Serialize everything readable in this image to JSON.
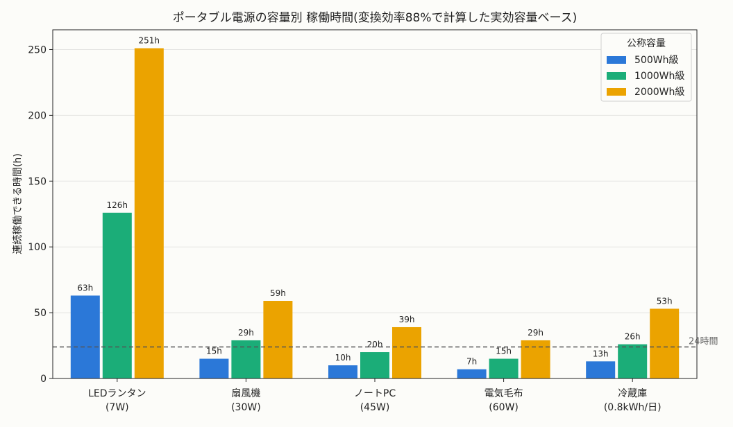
{
  "chart_data": {
    "type": "bar",
    "title": "ポータブル電源の容量別 稼働時間(変換効率88%で計算した実効容量ベース)",
    "xlabel": "",
    "ylabel": "連続稼働できる時間(h)",
    "categories": [
      "LEDランタン\n(7W)",
      "扇風機\n(30W)",
      "ノートPC\n(45W)",
      "電気毛布\n(60W)",
      "冷蔵庫\n(0.8kWh/日)"
    ],
    "series": [
      {
        "name": "500Wh級",
        "color": "#2b78d8",
        "values": [
          63,
          15,
          10,
          7,
          13
        ],
        "labels": [
          "63h",
          "15h",
          "10h",
          "7h",
          "13h"
        ]
      },
      {
        "name": "1000Wh級",
        "color": "#1bad78",
        "values": [
          126,
          29,
          20,
          15,
          26
        ],
        "labels": [
          "126h",
          "29h",
          "20h",
          "15h",
          "26h"
        ]
      },
      {
        "name": "2000Wh級",
        "color": "#eba300",
        "values": [
          251,
          59,
          39,
          29,
          53
        ],
        "labels": [
          "251h",
          "59h",
          "39h",
          "29h",
          "53h"
        ]
      }
    ],
    "ylim": [
      0,
      265
    ],
    "yticks": [
      0,
      50,
      100,
      150,
      200,
      250
    ],
    "grid": "horizontal",
    "legend": {
      "title": "公称容量",
      "position": "top-right"
    },
    "reference_line": {
      "value": 24,
      "label": "24時間",
      "style": "dashed"
    }
  }
}
